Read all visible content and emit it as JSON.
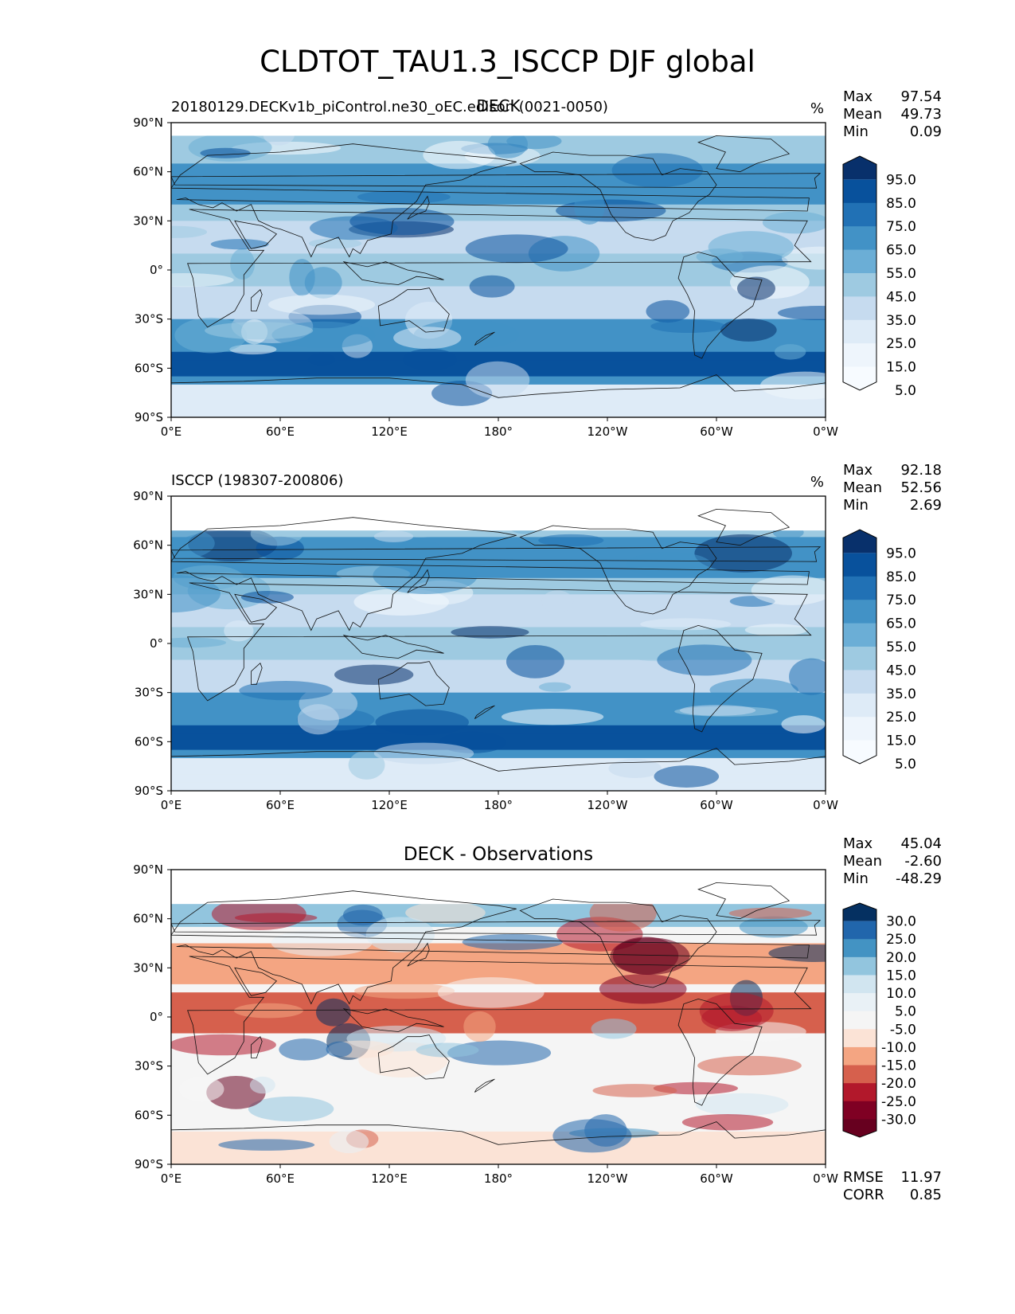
{
  "title": "CLDTOT_TAU1.3_ISCCP DJF global",
  "panels": [
    {
      "id": "test",
      "left_text": "20180129.DECKv1b_piControl.ne30_oEC.edison (0021-0050)",
      "center_text": "DECK",
      "units": "%",
      "stats": [
        {
          "label": "Max",
          "value": "97.54"
        },
        {
          "label": "Mean",
          "value": "49.73"
        },
        {
          "label": "Min",
          "value": "0.09"
        }
      ],
      "colorbar": {
        "ticks": [
          "95.0",
          "85.0",
          "75.0",
          "65.0",
          "55.0",
          "45.0",
          "35.0",
          "25.0",
          "15.0",
          "5.0"
        ],
        "colors": [
          "#08306b",
          "#08519c",
          "#2171b5",
          "#4292c6",
          "#6baed6",
          "#9ecae1",
          "#c6dbef",
          "#deebf7",
          "#eef5fc",
          "#f7fbff"
        ]
      },
      "bottom_stats": []
    },
    {
      "id": "reference",
      "left_text": "ISCCP (198307-200806)",
      "center_text": "",
      "units": "%",
      "stats": [
        {
          "label": "Max",
          "value": "92.18"
        },
        {
          "label": "Mean",
          "value": "52.56"
        },
        {
          "label": "Min",
          "value": "2.69"
        }
      ],
      "colorbar": {
        "ticks": [
          "95.0",
          "85.0",
          "75.0",
          "65.0",
          "55.0",
          "45.0",
          "35.0",
          "25.0",
          "15.0",
          "5.0"
        ],
        "colors": [
          "#08306b",
          "#08519c",
          "#2171b5",
          "#4292c6",
          "#6baed6",
          "#9ecae1",
          "#c6dbef",
          "#deebf7",
          "#eef5fc",
          "#f7fbff"
        ]
      },
      "bottom_stats": []
    },
    {
      "id": "difference",
      "left_text": "",
      "center_text": "DECK - Observations",
      "units": "",
      "stats": [
        {
          "label": "Max",
          "value": "45.04"
        },
        {
          "label": "Mean",
          "value": "-2.60"
        },
        {
          "label": "Min",
          "value": "-48.29"
        }
      ],
      "colorbar": {
        "ticks": [
          "30.0",
          "25.0",
          "20.0",
          "15.0",
          "10.0",
          "5.0",
          "-5.0",
          "-10.0",
          "-15.0",
          "-20.0",
          "-25.0",
          "-30.0"
        ],
        "colors": [
          "#053061",
          "#2166ac",
          "#4393c3",
          "#92c5de",
          "#d1e5f0",
          "#e9f1f6",
          "#f5f5f5",
          "#fbe3d6",
          "#f4a582",
          "#d6604d",
          "#b2182b",
          "#7f0023",
          "#67001f"
        ]
      },
      "bottom_stats": [
        {
          "label": "RMSE",
          "value": "11.97"
        },
        {
          "label": "CORR",
          "value": "0.85"
        }
      ]
    }
  ],
  "axes": {
    "lat_ticks": [
      "90°N",
      "60°N",
      "30°N",
      "0°",
      "30°S",
      "60°S",
      "90°S"
    ],
    "lon_ticks": [
      "0°E",
      "60°E",
      "120°E",
      "180°",
      "120°W",
      "60°W",
      "0°W"
    ]
  }
}
